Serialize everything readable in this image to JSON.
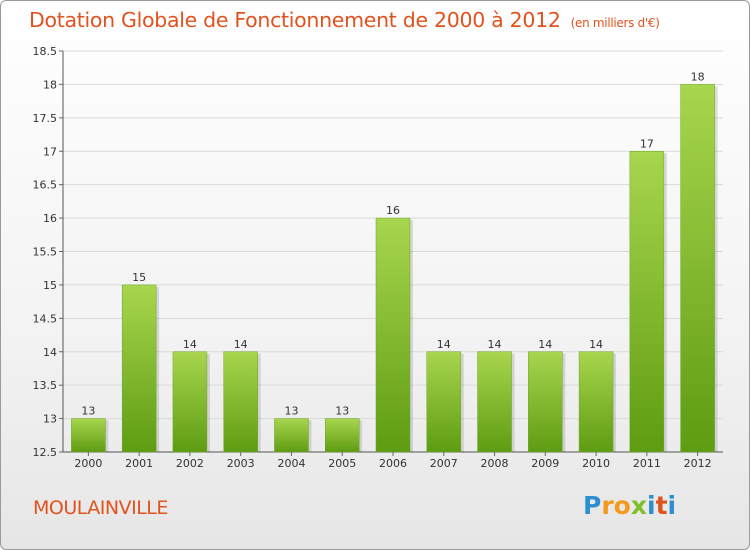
{
  "header": {
    "title": "Dotation Globale de Fonctionnement de 2000 à 2012",
    "subtitle": "(en milliers d'€)"
  },
  "footer": {
    "commune": "MOULAINVILLE",
    "logo_letters": [
      "P",
      "r",
      "o",
      "x",
      "i",
      "t",
      "i"
    ]
  },
  "colors": {
    "title": "#e0531e",
    "bar_top": "#a8d64e",
    "bar_bottom": "#5e9c12",
    "grid": "#d9d9d9"
  },
  "chart_data": {
    "type": "bar",
    "title": "Dotation Globale de Fonctionnement de 2000 à 2012",
    "xlabel": "",
    "ylabel": "",
    "categories": [
      "2000",
      "2001",
      "2002",
      "2003",
      "2004",
      "2005",
      "2006",
      "2007",
      "2008",
      "2009",
      "2010",
      "2011",
      "2012"
    ],
    "values": [
      13,
      15,
      14,
      14,
      13,
      13,
      16,
      14,
      14,
      14,
      14,
      17,
      18
    ],
    "ylim": [
      12.5,
      18.5
    ],
    "yticks": [
      "12.5",
      "13",
      "13.5",
      "14",
      "14.5",
      "15",
      "15.5",
      "16",
      "16.5",
      "17",
      "17.5",
      "18",
      "18.5"
    ],
    "grid": true,
    "legend": "none"
  }
}
